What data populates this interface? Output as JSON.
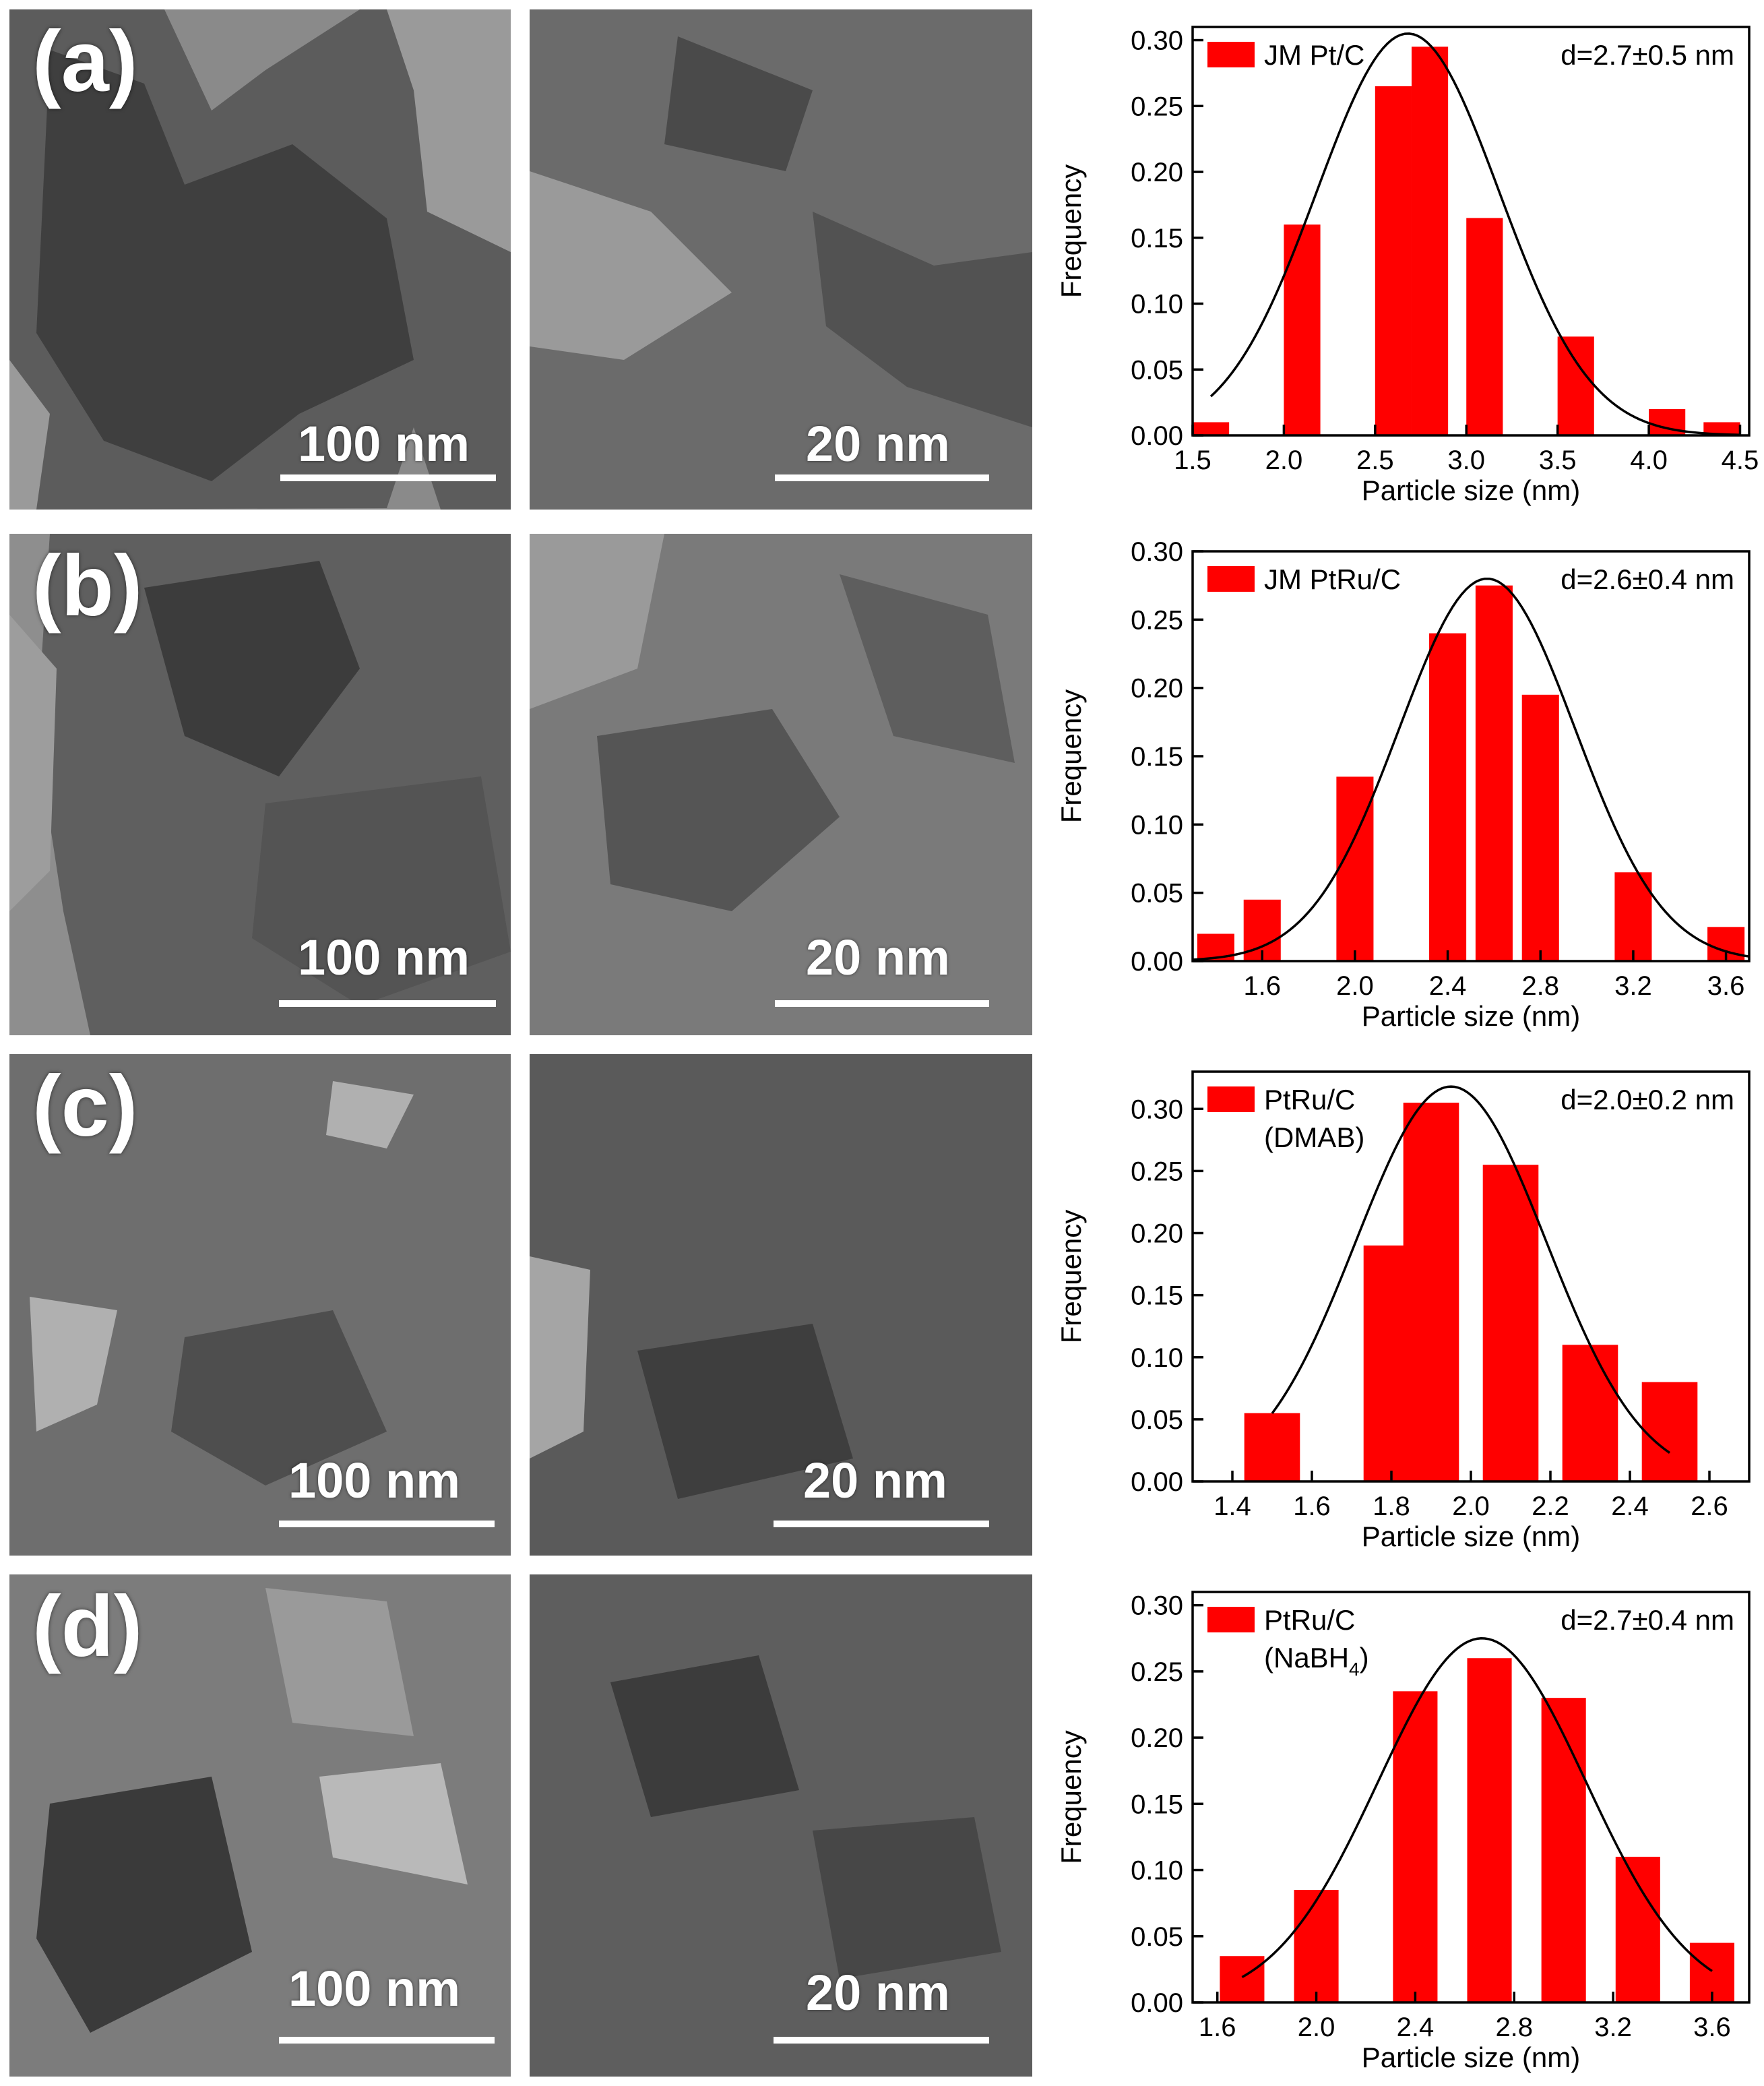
{
  "panels": [
    {
      "letter": "(a)",
      "scale_low": "100 nm",
      "scale_high": "20 nm",
      "chart_data": {
        "type": "bar",
        "legend": "JM Pt/C",
        "legend_line2": "",
        "legend_sub": "",
        "legend_end": "",
        "annotation": "d=2.7±0.5 nm",
        "xlabel": "Particle size (nm)",
        "ylabel": "Frequency",
        "xlim": [
          1.5,
          4.55
        ],
        "ylim": [
          0,
          0.31
        ],
        "xticks": [
          "1.5",
          "2.0",
          "2.5",
          "3.0",
          "3.5",
          "4.0",
          "4.5"
        ],
        "yticks": [
          "0.00",
          "0.05",
          "0.10",
          "0.15",
          "0.20",
          "0.25",
          "0.30"
        ],
        "bar_width": 0.2,
        "bars": [
          {
            "x": 1.6,
            "y": 0.01
          },
          {
            "x": 2.1,
            "y": 0.16
          },
          {
            "x": 2.6,
            "y": 0.265
          },
          {
            "x": 2.8,
            "y": 0.295
          },
          {
            "x": 3.1,
            "y": 0.165
          },
          {
            "x": 3.6,
            "y": 0.075
          },
          {
            "x": 4.1,
            "y": 0.02
          },
          {
            "x": 4.4,
            "y": 0.01
          }
        ],
        "fit": {
          "mu": 2.68,
          "sigma": 0.5,
          "peak": 0.305,
          "from": 1.6,
          "to": 4.5
        },
        "grid": false,
        "legend_position": "top-left"
      }
    },
    {
      "letter": "(b)",
      "scale_low": "100 nm",
      "scale_high": "20 nm",
      "chart_data": {
        "type": "bar",
        "legend": "JM PtRu/C",
        "legend_line2": "",
        "legend_sub": "",
        "legend_end": "",
        "annotation": "d=2.6±0.4 nm",
        "xlabel": "Particle size (nm)",
        "ylabel": "Frequency",
        "xlim": [
          1.3,
          3.7
        ],
        "ylim": [
          0,
          0.3
        ],
        "xticks": [
          "1.6",
          "2.0",
          "2.4",
          "2.8",
          "3.2",
          "3.6"
        ],
        "yticks": [
          "0.00",
          "0.05",
          "0.10",
          "0.15",
          "0.20",
          "0.25",
          "0.30"
        ],
        "bar_width": 0.16,
        "bars": [
          {
            "x": 1.4,
            "y": 0.02
          },
          {
            "x": 1.6,
            "y": 0.045
          },
          {
            "x": 2.0,
            "y": 0.135
          },
          {
            "x": 2.4,
            "y": 0.24
          },
          {
            "x": 2.6,
            "y": 0.275
          },
          {
            "x": 2.8,
            "y": 0.195
          },
          {
            "x": 3.2,
            "y": 0.065
          },
          {
            "x": 3.6,
            "y": 0.025
          }
        ],
        "fit": {
          "mu": 2.57,
          "sigma": 0.38,
          "peak": 0.28,
          "from": 1.3,
          "to": 3.7
        },
        "grid": false,
        "legend_position": "top-left"
      }
    },
    {
      "letter": "(c)",
      "scale_low": "100 nm",
      "scale_high": "20 nm",
      "chart_data": {
        "type": "bar",
        "legend": "PtRu/C",
        "legend_line2": "(DMAB)",
        "legend_sub": "",
        "legend_end": "",
        "annotation": "d=2.0±0.2 nm",
        "xlabel": "Particle size (nm)",
        "ylabel": "Frequency",
        "xlim": [
          1.3,
          2.7
        ],
        "ylim": [
          0,
          0.33
        ],
        "xticks": [
          "1.4",
          "1.6",
          "1.8",
          "2.0",
          "2.2",
          "2.4",
          "2.6"
        ],
        "yticks": [
          "0.00",
          "0.05",
          "0.10",
          "0.15",
          "0.20",
          "0.25",
          "0.30"
        ],
        "bar_width": 0.14,
        "bars": [
          {
            "x": 1.5,
            "y": 0.055
          },
          {
            "x": 1.8,
            "y": 0.19
          },
          {
            "x": 1.9,
            "y": 0.305
          },
          {
            "x": 2.1,
            "y": 0.255
          },
          {
            "x": 2.3,
            "y": 0.11
          },
          {
            "x": 2.5,
            "y": 0.08
          }
        ],
        "fit": {
          "mu": 1.95,
          "sigma": 0.24,
          "peak": 0.318,
          "from": 1.5,
          "to": 2.5
        },
        "grid": false,
        "legend_position": "top-left"
      }
    },
    {
      "letter": "(d)",
      "scale_low": "100 nm",
      "scale_high": "20 nm",
      "chart_data": {
        "type": "bar",
        "legend": "PtRu/C",
        "legend_line2": "(NaBH",
        "legend_sub": "4",
        "legend_end": ")",
        "annotation": "d=2.7±0.4 nm",
        "xlabel": "Particle size (nm)",
        "ylabel": "Frequency",
        "xlim": [
          1.5,
          3.75
        ],
        "ylim": [
          0,
          0.31
        ],
        "xticks": [
          "1.6",
          "2.0",
          "2.4",
          "2.8",
          "3.2",
          "3.6"
        ],
        "yticks": [
          "0.00",
          "0.05",
          "0.10",
          "0.15",
          "0.20",
          "0.25",
          "0.30"
        ],
        "bar_width": 0.18,
        "bars": [
          {
            "x": 1.7,
            "y": 0.035
          },
          {
            "x": 2.0,
            "y": 0.085
          },
          {
            "x": 2.4,
            "y": 0.235
          },
          {
            "x": 2.7,
            "y": 0.26
          },
          {
            "x": 3.0,
            "y": 0.23
          },
          {
            "x": 3.3,
            "y": 0.11
          },
          {
            "x": 3.6,
            "y": 0.045
          }
        ],
        "fit": {
          "mu": 2.67,
          "sigma": 0.42,
          "peak": 0.275,
          "from": 1.7,
          "to": 3.6
        },
        "grid": false,
        "legend_position": "top-left"
      }
    }
  ],
  "colors": {
    "bar": "#ff0000",
    "fit": "#000000",
    "axis": "#000000",
    "text": "#000000"
  }
}
